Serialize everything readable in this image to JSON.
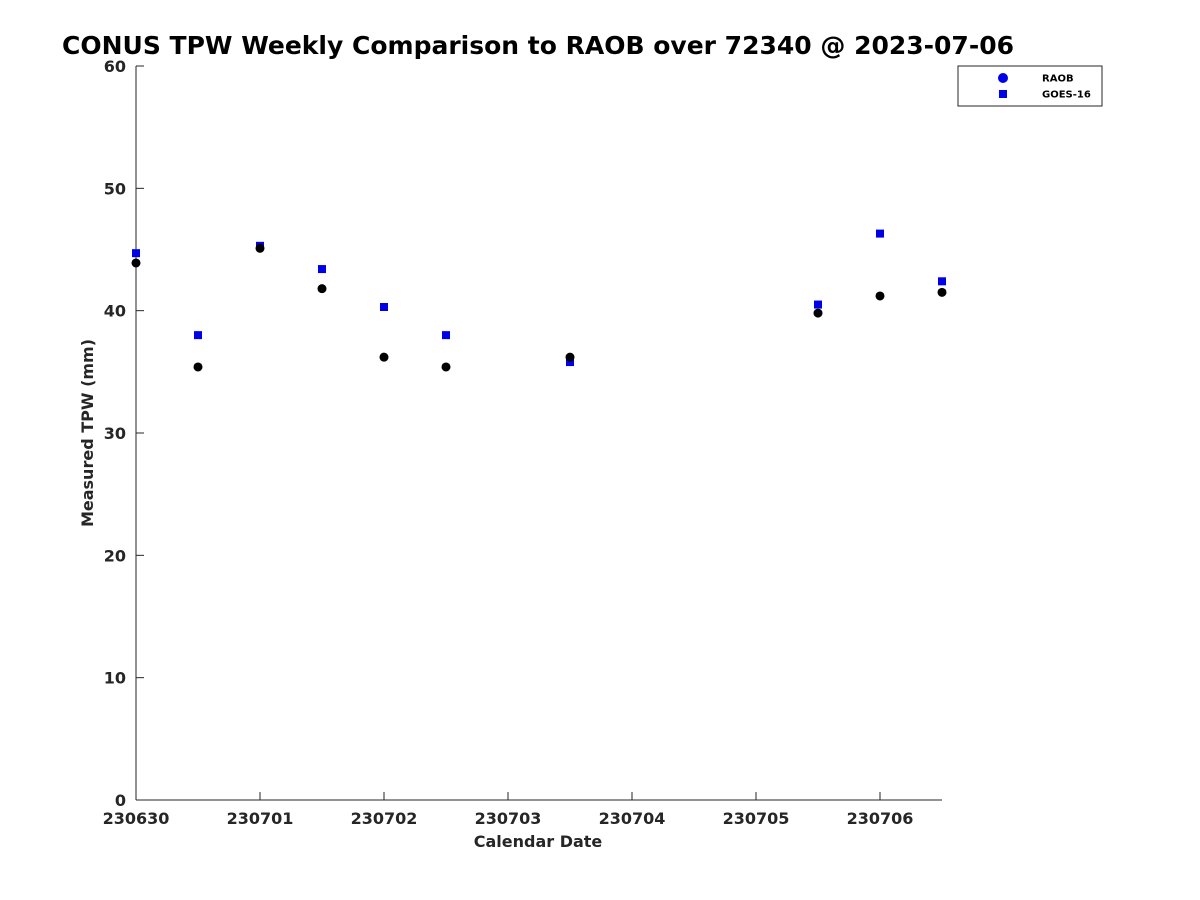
{
  "chart_data": {
    "type": "scatter",
    "title": "CONUS TPW Weekly Comparison to RAOB over 72340 @ 2023-07-06",
    "xlabel": "Calendar Date",
    "ylabel": "Measured TPW (mm)",
    "xlim": [
      "230630",
      "230706.5"
    ],
    "ylim": [
      0,
      60
    ],
    "x_ticks": [
      "230630",
      "230701",
      "230702",
      "230703",
      "230704",
      "230705",
      "230706"
    ],
    "y_ticks": [
      "0",
      "10",
      "20",
      "30",
      "40",
      "50",
      "60"
    ],
    "grid": false,
    "legend_position": "top-right",
    "series": [
      {
        "name": "RAOB",
        "marker": "circle",
        "color": "#000000",
        "legend_color": "#0000e6",
        "x": [
          "230630",
          "230630.5",
          "230701",
          "230701.5",
          "230702",
          "230702.5",
          "230703.5",
          "230705.5",
          "230706",
          "230706.5"
        ],
        "values": [
          43.9,
          35.4,
          45.1,
          41.8,
          36.2,
          35.4,
          36.2,
          39.8,
          41.2,
          41.5
        ]
      },
      {
        "name": "GOES-16",
        "marker": "square",
        "color": "#0000e6",
        "x": [
          "230630",
          "230630.5",
          "230701",
          "230701.5",
          "230702",
          "230702.5",
          "230703.5",
          "230705.5",
          "230706",
          "230706.5"
        ],
        "values": [
          44.7,
          38.0,
          45.3,
          43.4,
          40.3,
          38.0,
          35.8,
          40.5,
          46.3,
          42.4
        ]
      }
    ]
  }
}
